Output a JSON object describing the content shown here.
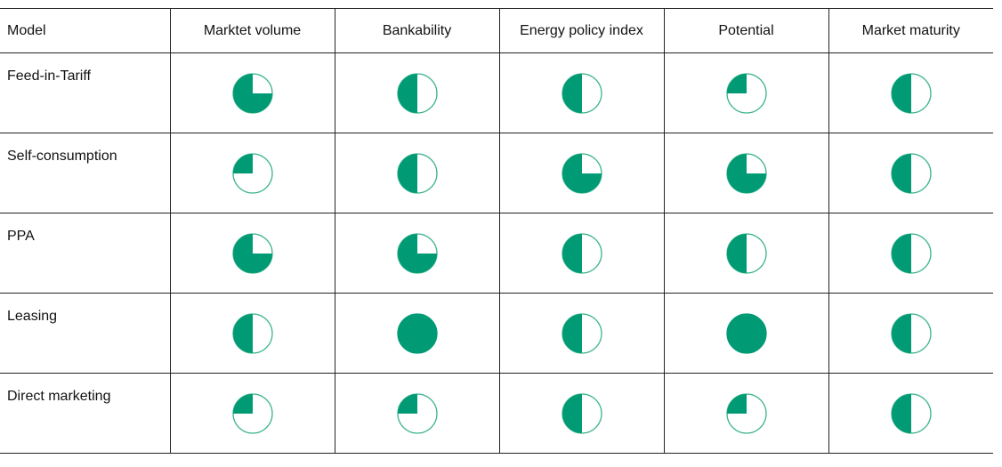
{
  "table": {
    "columns": [
      "Model",
      "Marktet volume",
      "Bankability",
      "Energy policy index",
      "Potential",
      "Market maturity"
    ],
    "rows": [
      {
        "model": "Feed-in-Tariff",
        "ratings": [
          0.75,
          0.5,
          0.5,
          0.25,
          0.5
        ]
      },
      {
        "model": "Self-consumption",
        "ratings": [
          0.25,
          0.5,
          0.75,
          0.75,
          0.5
        ]
      },
      {
        "model": "PPA",
        "ratings": [
          0.75,
          0.75,
          0.5,
          0.5,
          0.5
        ]
      },
      {
        "model": "Leasing",
        "ratings": [
          0.5,
          1.0,
          0.5,
          1.0,
          0.5
        ]
      },
      {
        "model": "Direct marketing",
        "ratings": [
          0.25,
          0.25,
          0.5,
          0.25,
          0.5
        ]
      }
    ]
  },
  "colors": {
    "fill": "#009a74",
    "outline": "#3fb58d"
  },
  "icon": "harvey-ball-icon"
}
